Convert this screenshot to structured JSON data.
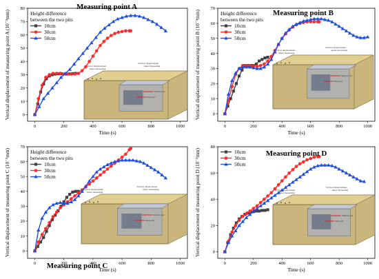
{
  "chart_data": [
    {
      "type": "line",
      "title": "Measuring point A",
      "title_position": "top",
      "ylabel": "Vertical displacement of measuring point A (10⁻³mm)",
      "xlabel": "Time (s)",
      "xlim": [
        -50,
        1050
      ],
      "ylim": [
        -5,
        80
      ],
      "xticks": [
        0,
        200,
        400,
        600,
        800,
        1000
      ],
      "yticks": [
        0,
        10,
        20,
        30,
        40,
        50,
        60,
        70,
        80
      ],
      "legend_title": [
        "Height difference",
        "between the two pits"
      ],
      "legend_position": "top-left",
      "series": [
        {
          "name": "10cm",
          "color": "#404040",
          "marker": "square",
          "x": [
            0,
            20,
            40,
            60,
            80,
            100,
            120,
            140,
            160,
            180,
            200,
            220,
            240,
            260,
            280
          ],
          "y": [
            0,
            8,
            17,
            23,
            27,
            29,
            30,
            30.5,
            30.7,
            30.8,
            30.5,
            30.5,
            30.6,
            30.8,
            31
          ]
        },
        {
          "name": "30cm",
          "color": "#ff2a2a",
          "marker": "circle",
          "x": [
            0,
            25,
            50,
            75,
            100,
            125,
            150,
            175,
            200,
            225,
            250,
            275,
            300,
            325,
            350,
            375,
            400,
            425,
            450,
            475,
            500,
            525,
            550,
            575,
            600,
            625,
            650,
            660
          ],
          "y": [
            0,
            12,
            22,
            28,
            30,
            31,
            31,
            31,
            30.5,
            30.5,
            30.5,
            30.5,
            31,
            33,
            36,
            40,
            44,
            48,
            52,
            55,
            57.5,
            59.5,
            61,
            62,
            62.5,
            63,
            63,
            63
          ]
        },
        {
          "name": "50cm",
          "color": "#1f4fe0",
          "marker": "triangle",
          "x": [
            0,
            30,
            60,
            90,
            120,
            150,
            180,
            210,
            240,
            270,
            300,
            330,
            360,
            390,
            420,
            450,
            480,
            510,
            540,
            570,
            600,
            630,
            660,
            690,
            720,
            750,
            780,
            810,
            840,
            870,
            900
          ],
          "y": [
            0,
            6,
            12,
            16,
            20,
            24,
            28,
            31,
            34,
            38,
            42,
            46,
            50,
            54,
            58,
            62,
            65,
            67.5,
            70,
            72,
            73,
            74,
            74.5,
            74.5,
            74,
            73,
            71.5,
            70,
            68,
            65.5,
            63
          ]
        }
      ]
    },
    {
      "type": "line",
      "title": "Measuring point B",
      "title_position": "top",
      "ylabel": "Vertical displacement of measuring point B (10⁻³mm)",
      "xlabel": "Time (s)",
      "xlim": [
        -50,
        1050
      ],
      "ylim": [
        -5,
        70
      ],
      "xticks": [
        0,
        200,
        400,
        600,
        800,
        1000
      ],
      "yticks": [
        0,
        10,
        20,
        30,
        40,
        50,
        60,
        70
      ],
      "legend_title": [
        "Height difference",
        "between the two pits"
      ],
      "legend_position": "top-left",
      "series": [
        {
          "name": "10cm",
          "color": "#404040",
          "marker": "square",
          "x": [
            0,
            20,
            40,
            60,
            80,
            100,
            120,
            140,
            160,
            180,
            200,
            220,
            240,
            260,
            280,
            300
          ],
          "y": [
            0,
            5,
            10,
            15,
            20,
            25,
            29,
            32,
            32,
            32,
            32,
            33,
            35,
            36,
            37,
            37.5
          ]
        },
        {
          "name": "30cm",
          "color": "#ff2a2a",
          "marker": "circle",
          "x": [
            0,
            25,
            50,
            75,
            100,
            125,
            150,
            175,
            200,
            225,
            250,
            275,
            300,
            325,
            350,
            375,
            400,
            425,
            450,
            475,
            500,
            525,
            550,
            575,
            600,
            625,
            650,
            660
          ],
          "y": [
            0,
            9,
            18,
            26,
            30,
            32,
            32,
            32,
            31.5,
            31.5,
            32,
            33,
            35,
            38,
            42,
            46,
            50,
            53,
            55.5,
            57.5,
            59,
            60,
            60.5,
            61,
            61,
            61,
            61,
            61
          ]
        },
        {
          "name": "50cm",
          "color": "#1f4fe0",
          "marker": "triangle",
          "x": [
            0,
            25,
            50,
            75,
            100,
            125,
            150,
            175,
            200,
            225,
            250,
            275,
            300,
            325,
            350,
            375,
            400,
            425,
            450,
            475,
            500,
            525,
            550,
            575,
            600,
            625,
            650,
            675,
            700,
            725,
            750,
            775,
            800,
            825,
            850,
            875,
            900,
            925,
            950,
            975,
            1000
          ],
          "y": [
            0,
            13,
            22,
            27,
            30,
            31,
            31,
            31,
            30.5,
            30,
            30,
            31,
            33,
            36,
            41,
            46,
            50,
            53.5,
            56,
            58,
            59.5,
            60.5,
            61.5,
            62,
            62.5,
            63,
            63,
            63,
            62.5,
            62,
            61,
            59.5,
            58,
            56.5,
            55,
            53.5,
            52,
            51,
            50.5,
            50.5,
            51
          ]
        }
      ]
    },
    {
      "type": "line",
      "title": "Measuring point C",
      "title_position": "bottom",
      "ylabel": "Vertical displacement of measuring point C (10⁻³mm)",
      "xlabel": "Time (s)",
      "xlim": [
        -50,
        1050
      ],
      "ylim": [
        -5,
        70
      ],
      "xticks": [
        0,
        200,
        400,
        600,
        800,
        1000
      ],
      "yticks": [
        0,
        10,
        20,
        30,
        40,
        50,
        60,
        70
      ],
      "legend_title": [
        "Height difference",
        "between the two pits"
      ],
      "legend_position": "top-left",
      "series": [
        {
          "name": "10cm",
          "color": "#404040",
          "marker": "square",
          "x": [
            0,
            20,
            40,
            60,
            80,
            100,
            120,
            140,
            160,
            180,
            200,
            220,
            240,
            260,
            280,
            300
          ],
          "y": [
            0,
            3,
            6,
            9,
            13,
            17,
            21,
            24,
            27,
            30,
            33,
            36,
            38,
            39.5,
            40,
            40
          ]
        },
        {
          "name": "30cm",
          "color": "#ff2a2a",
          "marker": "circle",
          "x": [
            0,
            25,
            50,
            75,
            100,
            125,
            150,
            175,
            200,
            225,
            250,
            275,
            300,
            325,
            350,
            375,
            400,
            425,
            450,
            475,
            500,
            525,
            550,
            575,
            600,
            625,
            650,
            660
          ],
          "y": [
            0,
            6,
            11,
            15,
            19,
            23,
            26,
            29,
            31,
            33,
            35,
            37,
            39,
            41,
            43,
            45,
            47,
            49,
            51,
            53,
            55,
            57,
            59,
            61,
            63,
            65,
            68,
            69
          ]
        },
        {
          "name": "50cm",
          "color": "#1f4fe0",
          "marker": "triangle",
          "x": [
            0,
            25,
            50,
            75,
            100,
            125,
            150,
            175,
            200,
            225,
            250,
            275,
            300,
            325,
            350,
            375,
            400,
            425,
            450,
            475,
            500,
            525,
            550,
            575,
            600,
            625,
            650,
            675,
            700,
            725,
            750,
            775,
            800,
            825,
            850,
            875,
            900
          ],
          "y": [
            0,
            14,
            22,
            26,
            29,
            31,
            32,
            32.5,
            32,
            32,
            33,
            34.5,
            37,
            40,
            43.5,
            47,
            50,
            53,
            55,
            56.5,
            58,
            59,
            60,
            60.5,
            61,
            61,
            61,
            61,
            60.5,
            60,
            59,
            57.5,
            56,
            54.5,
            53,
            51,
            49
          ]
        }
      ]
    },
    {
      "type": "line",
      "title": "Measuring point D",
      "title_position": "top",
      "ylabel": "Vertical displacement of measuring point D (10⁻³mm)",
      "xlabel": "Time (s)",
      "xlim": [
        -50,
        1050
      ],
      "ylim": [
        -5,
        80
      ],
      "xticks": [
        0,
        200,
        400,
        600,
        800,
        1000
      ],
      "yticks": [
        0,
        20,
        40,
        60,
        80
      ],
      "legend_title": [],
      "legend_position": "top-left",
      "series": [
        {
          "name": "10cm",
          "color": "#404040",
          "marker": "square",
          "x": [
            0,
            20,
            40,
            60,
            80,
            100,
            120,
            140,
            160,
            180,
            200,
            220,
            240,
            260,
            280,
            300
          ],
          "y": [
            0,
            7,
            13,
            18,
            22,
            25,
            27,
            28.5,
            29.5,
            30,
            30.5,
            31,
            31,
            31.5,
            31.5,
            32
          ]
        },
        {
          "name": "30cm",
          "color": "#ff2a2a",
          "marker": "circle",
          "x": [
            0,
            25,
            50,
            75,
            100,
            125,
            150,
            175,
            200,
            225,
            250,
            275,
            300,
            325,
            350,
            375,
            400,
            425,
            450,
            475,
            500,
            525,
            550,
            575,
            600,
            625,
            650,
            660
          ],
          "y": [
            0,
            8,
            15,
            20,
            24,
            27,
            29,
            31,
            33,
            35,
            37.5,
            40,
            42.5,
            45,
            48,
            51,
            54,
            57,
            60,
            62.5,
            65,
            67,
            68.5,
            70,
            71,
            72,
            72.5,
            72.5
          ]
        },
        {
          "name": "50cm",
          "color": "#1f4fe0",
          "marker": "triangle",
          "x": [
            0,
            25,
            50,
            75,
            100,
            125,
            150,
            175,
            200,
            225,
            250,
            275,
            300,
            325,
            350,
            375,
            400,
            425,
            450,
            475,
            500,
            525,
            550,
            575,
            600,
            625,
            650,
            675,
            700,
            725,
            750,
            775,
            800,
            825,
            850,
            875,
            900,
            925,
            950,
            975
          ],
          "y": [
            0,
            7,
            12,
            16,
            20,
            23,
            26,
            28.5,
            31,
            33,
            35,
            37,
            39,
            41,
            43,
            45,
            47,
            49,
            51,
            53,
            55,
            57,
            59,
            61,
            63,
            64.5,
            65.5,
            66,
            66,
            66,
            65.5,
            64.5,
            63,
            61.5,
            60,
            58.5,
            57,
            55.5,
            54,
            53.5
          ]
        }
      ]
    }
  ],
  "inset": {
    "label_left": [
      "Vertical displacement",
      "meter measuring"
    ],
    "label_right": [
      "Vertical displacement",
      "meter measuring"
    ],
    "inner_label_a": "Shallow pit",
    "inner_label_b": "Deep pit"
  },
  "colors": {
    "s10": "#404040",
    "s30": "#ff2a2a",
    "s50": "#1f4fe0",
    "soil": "#c8b277",
    "soil_top": "#e1cf92",
    "pit": "#a9b0bd"
  }
}
